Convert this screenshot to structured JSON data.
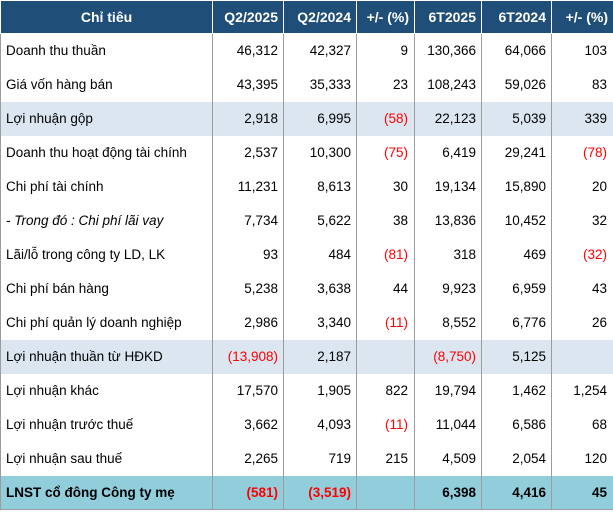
{
  "table": {
    "headers": [
      "Chỉ tiêu",
      "Q2/2025",
      "Q2/2024",
      "+/- (%)",
      "6T2025",
      "6T2024",
      "+/- (%)"
    ],
    "rows": [
      {
        "label": "Doanh thu thuần",
        "cells": [
          "46,312",
          "42,327",
          "9",
          "130,366",
          "64,066",
          "103"
        ],
        "neg": [
          false,
          false,
          false,
          false,
          false,
          false
        ],
        "style": "plain"
      },
      {
        "label": "Giá vốn hàng bán",
        "cells": [
          "43,395",
          "35,333",
          "23",
          "108,243",
          "59,026",
          "83"
        ],
        "neg": [
          false,
          false,
          false,
          false,
          false,
          false
        ],
        "style": "plain"
      },
      {
        "label": "Lợi nhuận gộp",
        "cells": [
          "2,918",
          "6,995",
          "(58)",
          "22,123",
          "5,039",
          "339"
        ],
        "neg": [
          false,
          false,
          true,
          false,
          false,
          false
        ],
        "style": "shade-light"
      },
      {
        "label": "Doanh thu hoạt động tài chính",
        "cells": [
          "2,537",
          "10,300",
          "(75)",
          "6,419",
          "29,241",
          "(78)"
        ],
        "neg": [
          false,
          false,
          true,
          false,
          false,
          true
        ],
        "style": "plain"
      },
      {
        "label": "Chi phí tài chính",
        "cells": [
          "11,231",
          "8,613",
          "30",
          "19,134",
          "15,890",
          "20"
        ],
        "neg": [
          false,
          false,
          false,
          false,
          false,
          false
        ],
        "style": "plain"
      },
      {
        "label": "- Trong đó : Chi phí lãi vay",
        "cells": [
          "7,734",
          "5,622",
          "38",
          "13,836",
          "10,452",
          "32"
        ],
        "neg": [
          false,
          false,
          false,
          false,
          false,
          false
        ],
        "style": "italic"
      },
      {
        "label": "Lãi/lỗ trong công ty LD, LK",
        "cells": [
          "93",
          "484",
          "(81)",
          "318",
          "469",
          "(32)"
        ],
        "neg": [
          false,
          false,
          true,
          false,
          false,
          true
        ],
        "style": "plain"
      },
      {
        "label": "Chi phí bán hàng",
        "cells": [
          "5,238",
          "3,638",
          "44",
          "9,923",
          "6,959",
          "43"
        ],
        "neg": [
          false,
          false,
          false,
          false,
          false,
          false
        ],
        "style": "plain"
      },
      {
        "label": "Chi phí quản lý doanh nghiệp",
        "cells": [
          "2,986",
          "3,340",
          "(11)",
          "8,552",
          "6,776",
          "26"
        ],
        "neg": [
          false,
          false,
          true,
          false,
          false,
          false
        ],
        "style": "plain"
      },
      {
        "label": "Lợi nhuận thuần từ HĐKD",
        "cells": [
          "(13,908)",
          "2,187",
          "",
          "(8,750)",
          "5,125",
          ""
        ],
        "neg": [
          true,
          false,
          false,
          true,
          false,
          false
        ],
        "style": "shade-light"
      },
      {
        "label": "Lợi nhuận khác",
        "cells": [
          "17,570",
          "1,905",
          "822",
          "19,794",
          "1,462",
          "1,254"
        ],
        "neg": [
          false,
          false,
          false,
          false,
          false,
          false
        ],
        "style": "plain"
      },
      {
        "label": "Lợi nhuận trước thuế",
        "cells": [
          "3,662",
          "4,093",
          "(11)",
          "11,044",
          "6,586",
          "68"
        ],
        "neg": [
          false,
          false,
          true,
          false,
          false,
          false
        ],
        "style": "plain"
      },
      {
        "label": "Lợi nhuận sau thuế",
        "cells": [
          "2,265",
          "719",
          "215",
          "4,509",
          "2,054",
          "120"
        ],
        "neg": [
          false,
          false,
          false,
          false,
          false,
          false
        ],
        "style": "plain"
      },
      {
        "label": "LNST cổ đông Công ty mẹ",
        "cells": [
          "(581)",
          "(3,519)",
          "",
          "6,398",
          "4,416",
          "45"
        ],
        "neg": [
          true,
          true,
          false,
          false,
          false,
          false
        ],
        "style": "shade-total"
      }
    ]
  },
  "colors": {
    "header_bg": "#1f4e79",
    "header_text": "#ffffff",
    "shade_light": "#dce6f1",
    "shade_total": "#92cddc",
    "negative": "#ff0000"
  }
}
